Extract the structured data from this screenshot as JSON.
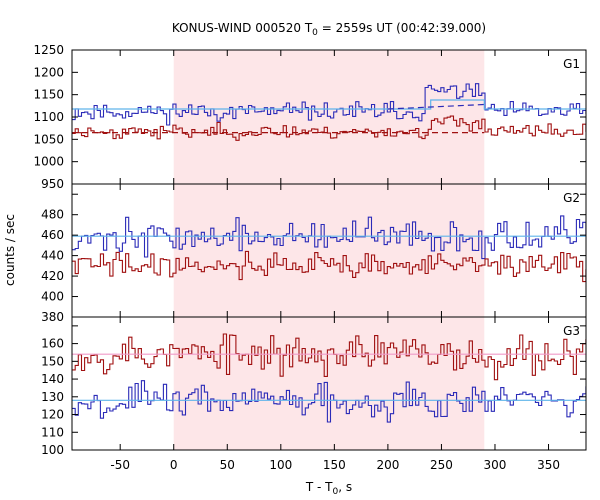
{
  "chart_data": {
    "type": "line",
    "title_parts": [
      "KONUS-WIND 000520 T",
      "0",
      " = 2559s UT (00:42:39.000)"
    ],
    "xlabel_parts": [
      "T - T",
      "0",
      ", s"
    ],
    "ylabel": "counts / sec",
    "xlim": [
      -95,
      385
    ],
    "x_ticks": [
      -50,
      0,
      50,
      100,
      150,
      200,
      250,
      300,
      350
    ],
    "shaded_interval": [
      0,
      290
    ],
    "colors": {
      "shade": "#fde6e8",
      "blue": "#2b2bb8",
      "red": "#a01010",
      "fit_blue": "#5fb4ea",
      "fit_pink": "#f09ac8",
      "panel_border": "#000000"
    },
    "panels": [
      {
        "label": "G1",
        "ylim": [
          950,
          1250
        ],
        "yticks": [
          950,
          1000,
          1050,
          1100,
          1150,
          1200,
          1250
        ],
        "series": [
          {
            "color_key": "blue",
            "bin_width": 2.944,
            "base": 1112,
            "noise": 14,
            "seed": 11,
            "bumps": [
              {
                "x0": 232,
                "x1": 290,
                "add": 45
              }
            ]
          },
          {
            "color_key": "red",
            "bin_width": 2.944,
            "base": 1067,
            "noise": 11,
            "seed": 23,
            "bumps": [
              {
                "x0": 240,
                "x1": 290,
                "add": 22
              }
            ]
          }
        ],
        "fits": [
          {
            "color_key": "fit_blue",
            "dash": false,
            "segments": [
              [
                -95,
                1118
              ],
              [
                240,
                1118
              ],
              [
                240,
                1138
              ],
              [
                290,
                1138
              ],
              [
                290,
                1118
              ],
              [
                385,
                1118
              ]
            ]
          },
          {
            "color_key": "blue",
            "dash": true,
            "segments": [
              [
                200,
                1118
              ],
              [
                290,
                1128
              ]
            ]
          },
          {
            "color_key": "red",
            "dash": true,
            "segments": [
              [
                -95,
                1065
              ],
              [
                290,
                1065
              ]
            ]
          }
        ]
      },
      {
        "label": "G2",
        "ylim": [
          380,
          510
        ],
        "yticks": [
          380,
          400,
          420,
          440,
          460,
          480,
          500
        ],
        "series": [
          {
            "color_key": "blue",
            "bin_width": 2.944,
            "base": 458,
            "noise": 11,
            "seed": 37,
            "bumps": []
          },
          {
            "color_key": "red",
            "bin_width": 2.944,
            "base": 431,
            "noise": 9,
            "seed": 41,
            "bumps": []
          }
        ],
        "fits": [
          {
            "color_key": "fit_blue",
            "dash": false,
            "segments": [
              [
                -95,
                459
              ],
              [
                385,
                459
              ]
            ]
          }
        ]
      },
      {
        "label": "G3",
        "ylim": [
          100,
          175
        ],
        "yticks": [
          100,
          110,
          120,
          130,
          140,
          150,
          160,
          170
        ],
        "series": [
          {
            "color_key": "red",
            "bin_width": 2.944,
            "base": 154,
            "noise": 8,
            "seed": 53,
            "bumps": []
          },
          {
            "color_key": "blue",
            "bin_width": 2.944,
            "base": 128,
            "noise": 7,
            "seed": 67,
            "bumps": []
          }
        ],
        "fits": [
          {
            "color_key": "fit_pink",
            "dash": false,
            "segments": [
              [
                -95,
                154
              ],
              [
                385,
                154
              ]
            ]
          },
          {
            "color_key": "fit_blue",
            "dash": false,
            "segments": [
              [
                -95,
                128
              ],
              [
                385,
                128
              ]
            ]
          }
        ]
      }
    ]
  }
}
